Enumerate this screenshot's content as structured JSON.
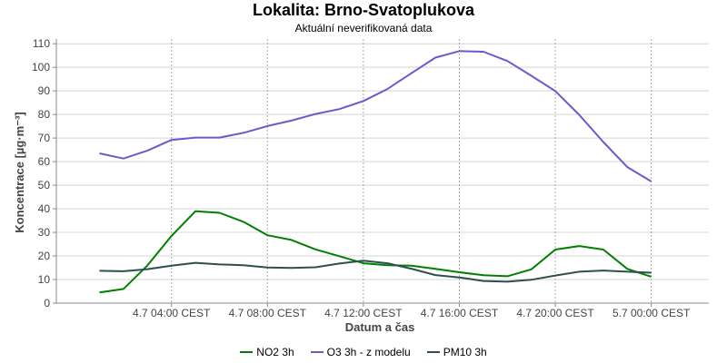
{
  "chart_data": {
    "type": "line",
    "title": "Lokalita: Brno-Svatoplukova",
    "subtitle": "Aktuální neverifikovaná data",
    "xlabel": "Datum a čas",
    "ylabel": "Koncentrace [µg·m⁻³]",
    "ylim": [
      0,
      112
    ],
    "yticks": [
      0,
      10,
      20,
      30,
      40,
      50,
      60,
      70,
      80,
      90,
      100,
      110
    ],
    "xlim": [
      -1.8,
      25.4
    ],
    "xticks": [
      {
        "x": 3,
        "label": "4.7 04:00 CEST"
      },
      {
        "x": 7,
        "label": "4.7 08:00 CEST"
      },
      {
        "x": 11,
        "label": "4.7 12:00 CEST"
      },
      {
        "x": 15,
        "label": "4.7 16:00 CEST"
      },
      {
        "x": 19,
        "label": "4.7 20:00 CEST"
      },
      {
        "x": 23,
        "label": "5.7 00:00 CEST"
      }
    ],
    "grid": true,
    "legend_position": "bottom",
    "x": [
      0,
      1,
      2,
      3,
      4,
      5,
      6,
      7,
      8,
      9,
      10,
      11,
      12,
      13,
      14,
      15,
      16,
      17,
      18,
      19,
      20,
      21,
      22,
      23
    ],
    "series": [
      {
        "name": "NO2 3h",
        "color": "#008000",
        "values": [
          4.5,
          6,
          16,
          28.5,
          39,
          38.3,
          34.5,
          28.8,
          26.8,
          22.8,
          19.9,
          16.9,
          16.1,
          15.9,
          14.5,
          13.1,
          11.8,
          11.4,
          14.3,
          22.7,
          24.2,
          22.7,
          14.5,
          11.2
        ]
      },
      {
        "name": "O3 3h - z modelu",
        "color": "#6a5acd",
        "values": [
          63.5,
          61.3,
          64.7,
          69.2,
          70.2,
          70.2,
          72.2,
          75.1,
          77.4,
          80.2,
          82.3,
          85.7,
          90.8,
          97.5,
          104.1,
          106.9,
          106.6,
          102.7,
          96.4,
          89.9,
          79.8,
          68.3,
          57.7,
          51.6
        ]
      },
      {
        "name": "PM10 3h",
        "color": "#2f4f4f",
        "values": [
          13.7,
          13.5,
          14.4,
          15.9,
          17.1,
          16.4,
          16.1,
          15.1,
          14.9,
          15.2,
          16.8,
          18,
          16.9,
          14.6,
          11.9,
          10.9,
          9.4,
          9.1,
          9.9,
          11.7,
          13.3,
          13.8,
          13.3,
          12.9
        ]
      }
    ]
  }
}
